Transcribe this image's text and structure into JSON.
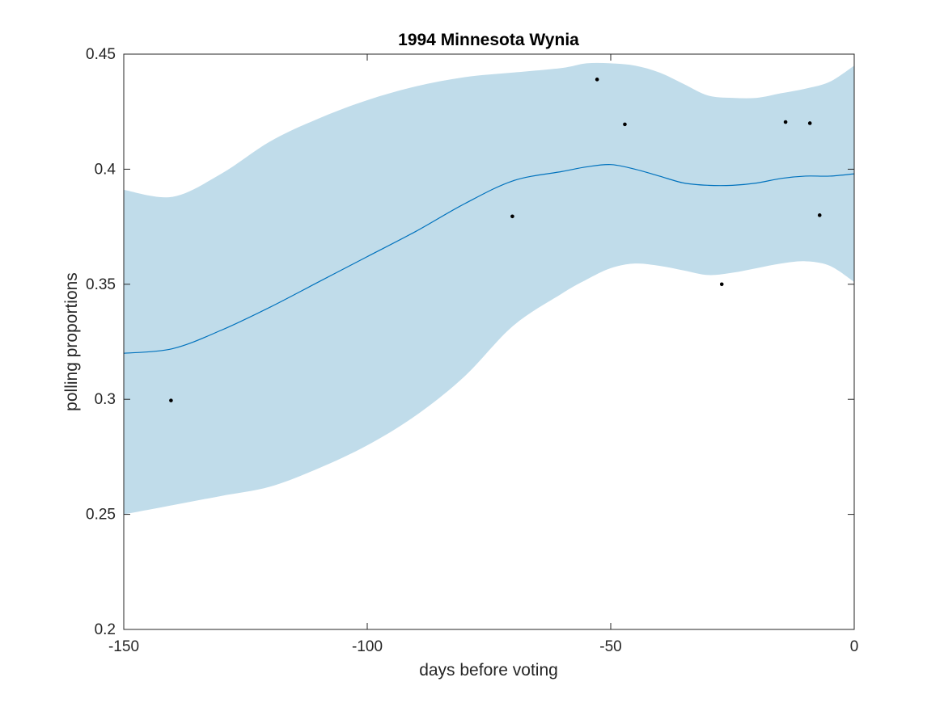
{
  "chart_data": {
    "type": "line",
    "title": "1994 Minnesota Wynia",
    "xlabel": "days before voting",
    "ylabel": "polling proportions",
    "xlim": [
      -150,
      0
    ],
    "ylim": [
      0.2,
      0.45
    ],
    "xticks": [
      -150,
      -100,
      -50,
      0
    ],
    "xtick_labels": [
      "-150",
      "-100",
      "-50",
      "0"
    ],
    "yticks": [
      0.2,
      0.25,
      0.3,
      0.35,
      0.4,
      0.45
    ],
    "ytick_labels": [
      "0.2",
      "0.25",
      "0.3",
      "0.35",
      "0.4",
      "0.45"
    ],
    "grid": false,
    "colors": {
      "band": "#c0dcea",
      "line": "#0072bd",
      "points": "#000000",
      "axes": "#262626"
    },
    "series": [
      {
        "type": "line",
        "x": [
          -150,
          -140,
          -130,
          -120,
          -110,
          -100,
          -90,
          -80,
          -70,
          -60,
          -55,
          -50,
          -45,
          -40,
          -35,
          -30,
          -25,
          -20,
          -15,
          -10,
          -5,
          0
        ],
        "y": [
          0.32,
          0.322,
          0.33,
          0.34,
          0.351,
          0.362,
          0.373,
          0.385,
          0.395,
          0.399,
          0.401,
          0.402,
          0.4,
          0.397,
          0.394,
          0.393,
          0.393,
          0.394,
          0.396,
          0.397,
          0.397,
          0.398
        ]
      },
      {
        "type": "band",
        "x": [
          -150,
          -140,
          -130,
          -120,
          -110,
          -100,
          -90,
          -80,
          -70,
          -60,
          -55,
          -50,
          -45,
          -40,
          -35,
          -30,
          -25,
          -20,
          -15,
          -10,
          -5,
          0
        ],
        "upper": [
          0.391,
          0.388,
          0.398,
          0.412,
          0.422,
          0.43,
          0.436,
          0.44,
          0.442,
          0.444,
          0.446,
          0.446,
          0.445,
          0.442,
          0.437,
          0.432,
          0.431,
          0.431,
          0.433,
          0.435,
          0.438,
          0.445
        ],
        "lower": [
          0.25,
          0.254,
          0.258,
          0.262,
          0.27,
          0.28,
          0.293,
          0.31,
          0.332,
          0.346,
          0.352,
          0.357,
          0.359,
          0.358,
          0.356,
          0.354,
          0.355,
          0.357,
          0.359,
          0.36,
          0.358,
          0.351
        ]
      },
      {
        "type": "scatter",
        "x": [
          -140.3,
          -70.2,
          -52.8,
          -47.1,
          -27.2,
          -14.1,
          -9.1,
          -7.1
        ],
        "y": [
          0.2995,
          0.3795,
          0.439,
          0.4195,
          0.35,
          0.4205,
          0.42,
          0.38
        ]
      }
    ]
  }
}
